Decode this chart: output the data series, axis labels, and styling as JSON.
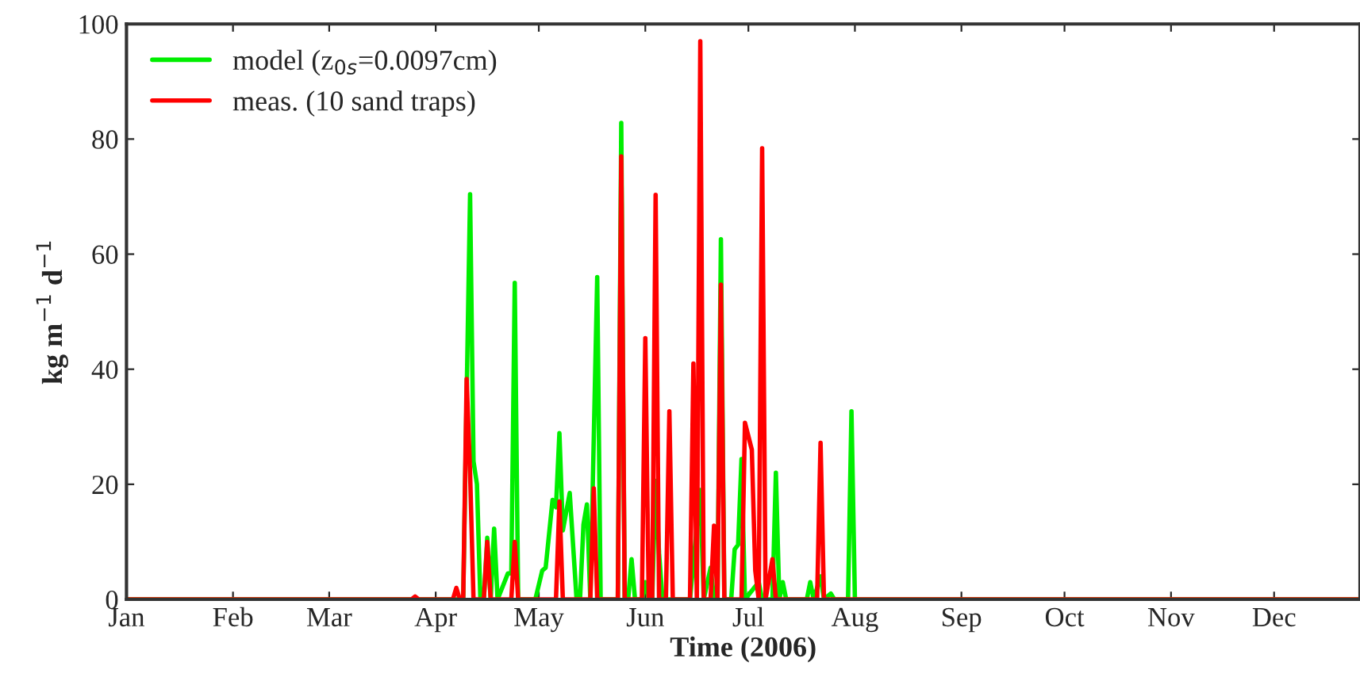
{
  "chart_data": {
    "type": "line",
    "xlabel": "Time (2006)",
    "ylabel": "kg m$^{−1}$ d$^{−1}$",
    "xlim": [
      "2006-01-01",
      "2006-12-26"
    ],
    "ylim": [
      0,
      100
    ],
    "yticks": [
      0,
      20,
      40,
      60,
      80,
      100
    ],
    "xticks": [
      {
        "value": "2006-01-01",
        "label": "Jan"
      },
      {
        "value": "2006-02-01",
        "label": "Feb"
      },
      {
        "value": "2006-03-01",
        "label": "Mar"
      },
      {
        "value": "2006-04-01",
        "label": "Apr"
      },
      {
        "value": "2006-05-01",
        "label": "May"
      },
      {
        "value": "2006-06-01",
        "label": "Jun"
      },
      {
        "value": "2006-07-01",
        "label": "Jul"
      },
      {
        "value": "2006-08-01",
        "label": "Aug"
      },
      {
        "value": "2006-09-01",
        "label": "Sep"
      },
      {
        "value": "2006-10-01",
        "label": "Oct"
      },
      {
        "value": "2006-11-01",
        "label": "Nov"
      },
      {
        "value": "2006-12-01",
        "label": "Dec"
      }
    ],
    "grid": false,
    "legend": "top left",
    "marker": "none",
    "line_style": "solid",
    "series": [
      {
        "name": "model (z$_{0s}$=0.0097cm)",
        "color": "#00ee00",
        "x": [
          "2006-01-01",
          "2006-04-07",
          "2006-04-09",
          "2006-04-11",
          "2006-04-12",
          "2006-04-13",
          "2006-04-14",
          "2006-04-15",
          "2006-04-16",
          "2006-04-17",
          "2006-04-18",
          "2006-04-19",
          "2006-04-21",
          "2006-04-22",
          "2006-04-23",
          "2006-04-24",
          "2006-04-25",
          "2006-04-30",
          "2006-05-02",
          "2006-05-03",
          "2006-05-05",
          "2006-05-06",
          "2006-05-07",
          "2006-05-08",
          "2006-05-10",
          "2006-05-12",
          "2006-05-13",
          "2006-05-14",
          "2006-05-15",
          "2006-05-16",
          "2006-05-18",
          "2006-05-19",
          "2006-05-24",
          "2006-05-25",
          "2006-05-26",
          "2006-05-27",
          "2006-05-28",
          "2006-05-29",
          "2006-05-31",
          "2006-06-01",
          "2006-06-02",
          "2006-06-03",
          "2006-06-04",
          "2006-06-05",
          "2006-06-06",
          "2006-06-14",
          "2006-06-17",
          "2006-06-18",
          "2006-06-20",
          "2006-06-21",
          "2006-06-22",
          "2006-06-23",
          "2006-06-24",
          "2006-06-26",
          "2006-06-27",
          "2006-06-28",
          "2006-06-29",
          "2006-06-30",
          "2006-07-04",
          "2006-07-05",
          "2006-07-08",
          "2006-07-09",
          "2006-07-10",
          "2006-07-11",
          "2006-07-12",
          "2006-07-18",
          "2006-07-19",
          "2006-07-20",
          "2006-07-22",
          "2006-07-23",
          "2006-07-25",
          "2006-07-26",
          "2006-07-30",
          "2006-07-31",
          "2006-08-01",
          "2006-12-26"
        ],
        "values": [
          0,
          0,
          0,
          70.4,
          24,
          20,
          0,
          0,
          10.7,
          0,
          12.3,
          0,
          3,
          4.5,
          4.5,
          55,
          0,
          0,
          5,
          5.5,
          17.3,
          16,
          28.9,
          12,
          18.5,
          0,
          0,
          13,
          16.5,
          0,
          56,
          0,
          0,
          82.8,
          0,
          0,
          7,
          0,
          0,
          3,
          0,
          0,
          20.6,
          8,
          0,
          0,
          19,
          0,
          5.5,
          0,
          0,
          62.6,
          0,
          0,
          8.7,
          9.5,
          24.4,
          0,
          3,
          0,
          0,
          22,
          0,
          3,
          0,
          0,
          3,
          0,
          4,
          0,
          1,
          0,
          0,
          32.7,
          0,
          0
        ]
      },
      {
        "name": "meas. (10 sand traps)",
        "color": "#ff0000",
        "x": [
          "2006-01-01",
          "2006-03-25",
          "2006-03-26",
          "2006-03-27",
          "2006-04-06",
          "2006-04-07",
          "2006-04-08",
          "2006-04-09",
          "2006-04-10",
          "2006-04-11",
          "2006-04-12",
          "2006-04-15",
          "2006-04-16",
          "2006-04-17",
          "2006-04-23",
          "2006-04-24",
          "2006-04-25",
          "2006-05-06",
          "2006-05-07",
          "2006-05-08",
          "2006-05-16",
          "2006-05-17",
          "2006-05-18",
          "2006-05-24",
          "2006-05-25",
          "2006-05-26",
          "2006-05-31",
          "2006-06-01",
          "2006-06-02",
          "2006-06-03",
          "2006-06-04",
          "2006-06-05",
          "2006-06-07",
          "2006-06-08",
          "2006-06-09",
          "2006-06-14",
          "2006-06-15",
          "2006-06-16",
          "2006-06-17",
          "2006-06-18",
          "2006-06-20",
          "2006-06-21",
          "2006-06-22",
          "2006-06-23",
          "2006-06-24",
          "2006-06-29",
          "2006-06-30",
          "2006-07-02",
          "2006-07-03",
          "2006-07-04",
          "2006-07-05",
          "2006-07-06",
          "2006-07-08",
          "2006-07-09",
          "2006-07-21",
          "2006-07-22",
          "2006-07-23",
          "2006-12-26"
        ],
        "values": [
          0,
          0,
          0.5,
          0,
          0,
          2,
          0,
          0,
          38.3,
          22,
          0,
          0,
          10,
          0,
          0,
          10,
          0,
          0,
          17,
          0,
          0,
          19.3,
          0,
          0,
          77,
          0,
          0,
          45.4,
          0,
          0,
          70.3,
          0,
          0,
          32.7,
          0,
          0,
          41,
          0,
          97,
          0,
          0,
          12.8,
          0,
          54.7,
          0,
          0,
          30.7,
          26,
          5,
          0,
          78.4,
          0,
          7,
          0,
          0,
          27.2,
          0,
          0
        ]
      }
    ]
  }
}
